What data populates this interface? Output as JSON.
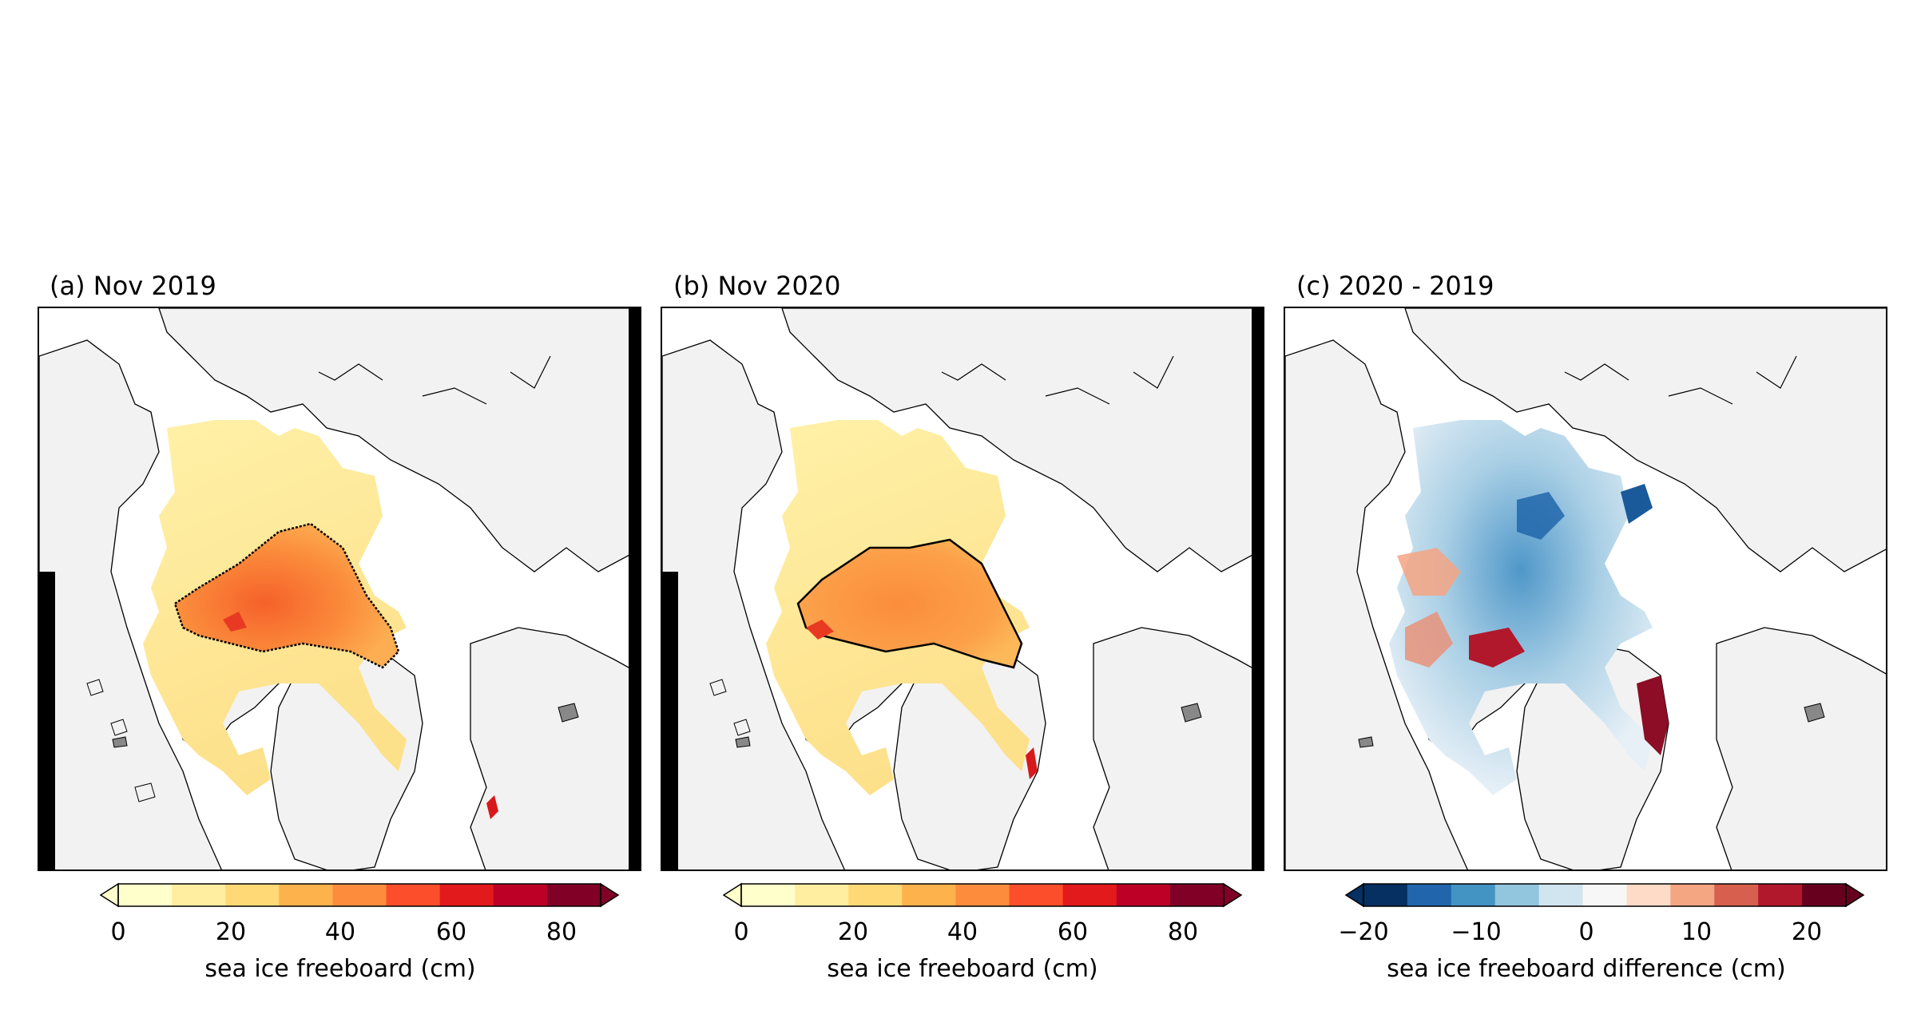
{
  "panels": [
    {
      "title": "(a) Nov 2019",
      "colorbar": {
        "label": "sea ice freeboard (cm)",
        "ticks": [
          "0",
          "20",
          "40",
          "60",
          "80"
        ],
        "range": [
          0,
          80
        ],
        "colormap": "YlOrRd",
        "extend": "both"
      }
    },
    {
      "title": "(b) Nov 2020",
      "colorbar": {
        "label": "sea ice freeboard (cm)",
        "ticks": [
          "0",
          "20",
          "40",
          "60",
          "80"
        ],
        "range": [
          0,
          80
        ],
        "colormap": "YlOrRd",
        "extend": "both"
      }
    },
    {
      "title": "(c) 2020 - 2019",
      "colorbar": {
        "label": "sea ice freeboard difference (cm)",
        "ticks": [
          "−20",
          "−10",
          "0",
          "10",
          "20"
        ],
        "range": [
          -20,
          20
        ],
        "colormap": "RdBu_r",
        "extend": "both"
      }
    }
  ],
  "colors": {
    "land": "#f2f2f2",
    "ocean": "#ffffff",
    "coastline": "#000000",
    "ylorrd": [
      "#ffffcc",
      "#ffeda0",
      "#fed976",
      "#feb24c",
      "#fd8d3c",
      "#fc4e2a",
      "#e31a1c",
      "#bd0026",
      "#800026"
    ],
    "rdbu_r": [
      "#053061",
      "#2166ac",
      "#4393c3",
      "#92c5de",
      "#d1e5f0",
      "#f7f7f7",
      "#fddbc7",
      "#f4a582",
      "#d6604d",
      "#b2182b",
      "#67001f"
    ]
  }
}
